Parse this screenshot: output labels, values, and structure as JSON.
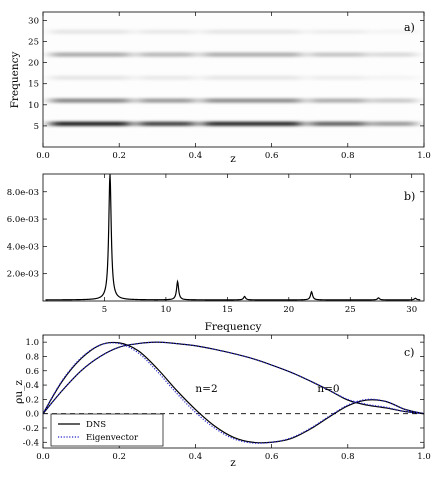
{
  "chart_data": [
    {
      "type": "heatmap",
      "panel_label": "a)",
      "xlabel": "z",
      "ylabel": "Frequency",
      "xlim": [
        0.0,
        1.0
      ],
      "ylim": [
        0,
        32
      ],
      "xticks": [
        "0.0",
        "0.2",
        "0.4",
        "0.6",
        "0.8",
        "1.0"
      ],
      "yticks": [
        "5",
        "10",
        "15",
        "20",
        "25",
        "30"
      ],
      "bands": [
        {
          "frequency": 5.5,
          "intensity": 0.85
        },
        {
          "frequency": 11.0,
          "intensity": 0.45
        },
        {
          "frequency": 16.4,
          "intensity": 0.1
        },
        {
          "frequency": 21.9,
          "intensity": 0.32
        },
        {
          "frequency": 27.3,
          "intensity": 0.1
        }
      ],
      "colormap": "gray_r",
      "grid": false
    },
    {
      "type": "line",
      "panel_label": "b)",
      "xlabel": "Frequency",
      "ylabel": "",
      "xlim": [
        0.0,
        31.0
      ],
      "ylim": [
        0.0,
        0.0093
      ],
      "xticks": [
        "5",
        "10",
        "15",
        "20",
        "25",
        "30"
      ],
      "yticks": [
        "2.0e-03",
        "4.0e-03",
        "6.0e-03",
        "8.0e-03"
      ],
      "peaks": [
        {
          "x": 5.45,
          "y": 0.0092
        },
        {
          "x": 10.95,
          "y": 0.00135
        },
        {
          "x": 16.4,
          "y": 0.00025
        },
        {
          "x": 21.85,
          "y": 0.0006
        },
        {
          "x": 27.3,
          "y": 0.00015
        },
        {
          "x": 30.3,
          "y": 0.00012
        }
      ],
      "baseline": 8e-05,
      "grid": false
    },
    {
      "type": "line",
      "panel_label": "c)",
      "xlabel": "z",
      "ylabel": "ρu_z",
      "xlim": [
        0.0,
        1.0
      ],
      "ylim": [
        -0.48,
        1.1
      ],
      "xticks": [
        "0.0",
        "0.2",
        "0.4",
        "0.6",
        "0.8",
        "1.0"
      ],
      "yticks": [
        "-0.4",
        "-0.2",
        "0.0",
        "0.2",
        "0.4",
        "0.6",
        "0.8",
        "1.0"
      ],
      "legend": {
        "position": "lower-left",
        "entries": [
          "DNS",
          "Eigenvector"
        ]
      },
      "annotations": [
        {
          "text": "n=2",
          "x": 0.4,
          "y": 0.3
        },
        {
          "text": "n=0",
          "x": 0.72,
          "y": 0.3
        }
      ],
      "series": [
        {
          "name": "DNS",
          "style": "solid",
          "color": "#000000",
          "x": [
            0.0,
            0.05,
            0.1,
            0.15,
            0.2,
            0.25,
            0.3,
            0.35,
            0.4,
            0.45,
            0.5,
            0.55,
            0.6,
            0.65,
            0.7,
            0.75,
            0.8,
            0.85,
            0.9,
            0.95,
            1.0
          ],
          "y": [
            0.0,
            0.45,
            0.77,
            0.96,
            0.99,
            0.88,
            0.63,
            0.33,
            0.06,
            -0.17,
            -0.33,
            -0.4,
            -0.4,
            -0.35,
            -0.22,
            -0.05,
            0.11,
            0.19,
            0.17,
            0.06,
            0.0
          ]
        },
        {
          "name": "DNS",
          "style": "solid",
          "color": "#000000",
          "x": [
            0.0,
            0.05,
            0.1,
            0.15,
            0.2,
            0.25,
            0.3,
            0.35,
            0.4,
            0.45,
            0.5,
            0.55,
            0.6,
            0.65,
            0.7,
            0.75,
            0.8,
            0.85,
            0.9,
            0.95,
            1.0
          ],
          "y": [
            0.0,
            0.32,
            0.6,
            0.8,
            0.93,
            0.98,
            1.0,
            0.98,
            0.95,
            0.9,
            0.84,
            0.77,
            0.68,
            0.58,
            0.46,
            0.33,
            0.19,
            0.12,
            0.08,
            0.03,
            0.0
          ]
        },
        {
          "name": "Eigenvector",
          "style": "dotted",
          "color": "#2222cc",
          "x": [
            0.0,
            0.05,
            0.1,
            0.15,
            0.2,
            0.25,
            0.3,
            0.35,
            0.4,
            0.45,
            0.5,
            0.55,
            0.6,
            0.65,
            0.7,
            0.75,
            0.8,
            0.85,
            0.9,
            0.95,
            1.0
          ],
          "y": [
            0.0,
            0.46,
            0.78,
            0.96,
            0.98,
            0.85,
            0.59,
            0.29,
            0.02,
            -0.2,
            -0.35,
            -0.41,
            -0.4,
            -0.34,
            -0.21,
            -0.04,
            0.12,
            0.2,
            0.17,
            0.06,
            0.0
          ]
        },
        {
          "name": "Eigenvector",
          "style": "dotted",
          "color": "#2222cc",
          "x": [
            0.0,
            0.05,
            0.1,
            0.15,
            0.2,
            0.25,
            0.3,
            0.35,
            0.4,
            0.45,
            0.5,
            0.55,
            0.6,
            0.65,
            0.7,
            0.75,
            0.8,
            0.85,
            0.9,
            0.95,
            1.0
          ],
          "y": [
            0.0,
            0.32,
            0.6,
            0.8,
            0.93,
            0.98,
            1.0,
            0.98,
            0.95,
            0.9,
            0.84,
            0.77,
            0.68,
            0.58,
            0.46,
            0.33,
            0.2,
            0.13,
            0.09,
            0.03,
            0.0
          ]
        }
      ],
      "reference_line": {
        "y": 0.0,
        "style": "dashed"
      },
      "grid": false
    }
  ]
}
